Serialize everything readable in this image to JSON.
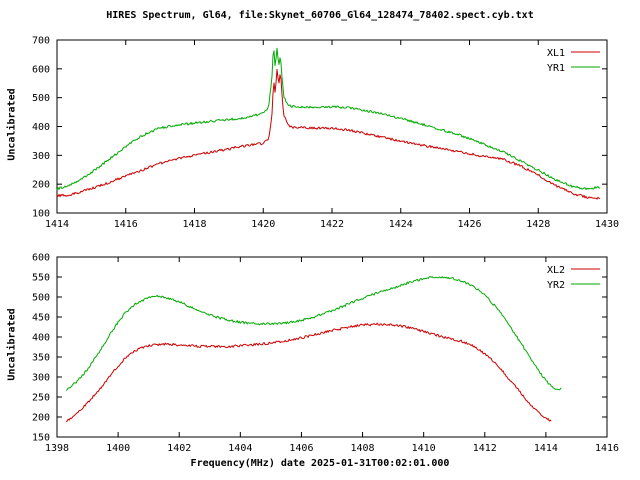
{
  "title": "HIRES Spectrum, Gl64, file:Skynet_60706_Gl64_128474_78402.spect.cyb.txt",
  "colors": {
    "background": "#ffffff",
    "axis": "#000000",
    "red": "#cc0000",
    "green": "#00aa00"
  },
  "chart_data": [
    {
      "type": "line",
      "title": "",
      "xlabel": "",
      "ylabel": "Uncalibrated",
      "xlim": [
        1414,
        1430
      ],
      "ylim": [
        100,
        700
      ],
      "xtick_step": 2,
      "ytick_step": 100,
      "grid": false,
      "legend_position": "top-right",
      "series": [
        {
          "name": "XL1",
          "color": "#cc0000",
          "points": [
            [
              1414.0,
              160
            ],
            [
              1414.3,
              162
            ],
            [
              1414.6,
              170
            ],
            [
              1415.0,
              185
            ],
            [
              1415.5,
              205
            ],
            [
              1416.0,
              228
            ],
            [
              1416.5,
              250
            ],
            [
              1417.0,
              272
            ],
            [
              1417.5,
              288
            ],
            [
              1418.0,
              300
            ],
            [
              1418.5,
              312
            ],
            [
              1419.0,
              322
            ],
            [
              1419.3,
              330
            ],
            [
              1419.6,
              335
            ],
            [
              1420.0,
              342
            ],
            [
              1420.15,
              355
            ],
            [
              1420.25,
              430
            ],
            [
              1420.3,
              560
            ],
            [
              1420.35,
              510
            ],
            [
              1420.4,
              600
            ],
            [
              1420.45,
              545
            ],
            [
              1420.5,
              595
            ],
            [
              1420.55,
              500
            ],
            [
              1420.6,
              440
            ],
            [
              1420.7,
              408
            ],
            [
              1420.8,
              398
            ],
            [
              1421.0,
              396
            ],
            [
              1421.5,
              395
            ],
            [
              1422.0,
              393
            ],
            [
              1422.5,
              388
            ],
            [
              1423.0,
              375
            ],
            [
              1423.5,
              362
            ],
            [
              1424.0,
              350
            ],
            [
              1424.5,
              338
            ],
            [
              1425.0,
              327
            ],
            [
              1425.5,
              317
            ],
            [
              1426.0,
              305
            ],
            [
              1426.5,
              295
            ],
            [
              1427.0,
              285
            ],
            [
              1427.5,
              262
            ],
            [
              1428.0,
              232
            ],
            [
              1428.5,
              195
            ],
            [
              1429.0,
              168
            ],
            [
              1429.4,
              155
            ],
            [
              1429.8,
              150
            ]
          ]
        },
        {
          "name": "YR1",
          "color": "#00aa00",
          "points": [
            [
              1414.0,
              183
            ],
            [
              1414.3,
              192
            ],
            [
              1414.6,
              210
            ],
            [
              1415.0,
              240
            ],
            [
              1415.5,
              285
            ],
            [
              1416.0,
              330
            ],
            [
              1416.5,
              370
            ],
            [
              1417.0,
              395
            ],
            [
              1417.5,
              405
            ],
            [
              1418.0,
              412
            ],
            [
              1418.5,
              418
            ],
            [
              1419.0,
              424
            ],
            [
              1419.5,
              432
            ],
            [
              1420.0,
              445
            ],
            [
              1420.15,
              465
            ],
            [
              1420.25,
              560
            ],
            [
              1420.3,
              685
            ],
            [
              1420.35,
              600
            ],
            [
              1420.4,
              675
            ],
            [
              1420.45,
              610
            ],
            [
              1420.5,
              650
            ],
            [
              1420.55,
              560
            ],
            [
              1420.6,
              505
            ],
            [
              1420.7,
              478
            ],
            [
              1420.8,
              470
            ],
            [
              1421.0,
              468
            ],
            [
              1421.5,
              467
            ],
            [
              1422.0,
              468
            ],
            [
              1422.5,
              465
            ],
            [
              1423.0,
              455
            ],
            [
              1423.5,
              442
            ],
            [
              1424.0,
              428
            ],
            [
              1424.5,
              412
            ],
            [
              1425.0,
              395
            ],
            [
              1425.5,
              378
            ],
            [
              1426.0,
              358
            ],
            [
              1426.5,
              335
            ],
            [
              1427.0,
              310
            ],
            [
              1427.5,
              280
            ],
            [
              1428.0,
              248
            ],
            [
              1428.5,
              215
            ],
            [
              1429.0,
              192
            ],
            [
              1429.4,
              183
            ],
            [
              1429.8,
              190
            ]
          ]
        }
      ]
    },
    {
      "type": "line",
      "title": "",
      "xlabel": "Frequency(MHz) date 2025-01-31T00:02:01.000",
      "ylabel": "Uncalibrated",
      "xlim": [
        1398,
        1416
      ],
      "ylim": [
        150,
        600
      ],
      "xtick_step": 2,
      "ytick_step": 50,
      "grid": false,
      "legend_position": "top-right",
      "series": [
        {
          "name": "XL2",
          "color": "#cc0000",
          "points": [
            [
              1398.3,
              190
            ],
            [
              1398.6,
              205
            ],
            [
              1399.0,
              235
            ],
            [
              1399.4,
              270
            ],
            [
              1399.8,
              310
            ],
            [
              1400.2,
              345
            ],
            [
              1400.6,
              368
            ],
            [
              1401.0,
              378
            ],
            [
              1401.4,
              382
            ],
            [
              1401.8,
              381
            ],
            [
              1402.2,
              379
            ],
            [
              1402.6,
              377
            ],
            [
              1403.0,
              376
            ],
            [
              1403.5,
              376
            ],
            [
              1404.0,
              378
            ],
            [
              1404.5,
              381
            ],
            [
              1405.0,
              385
            ],
            [
              1405.5,
              391
            ],
            [
              1406.0,
              398
            ],
            [
              1406.5,
              407
            ],
            [
              1407.0,
              416
            ],
            [
              1407.5,
              424
            ],
            [
              1408.0,
              430
            ],
            [
              1408.4,
              432
            ],
            [
              1408.8,
              431
            ],
            [
              1409.2,
              428
            ],
            [
              1409.6,
              422
            ],
            [
              1410.0,
              414
            ],
            [
              1410.4,
              405
            ],
            [
              1410.8,
              397
            ],
            [
              1411.2,
              390
            ],
            [
              1411.6,
              378
            ],
            [
              1412.0,
              358
            ],
            [
              1412.4,
              330
            ],
            [
              1412.8,
              295
            ],
            [
              1413.2,
              258
            ],
            [
              1413.6,
              222
            ],
            [
              1414.0,
              196
            ],
            [
              1414.2,
              190
            ]
          ]
        },
        {
          "name": "YR2",
          "color": "#00aa00",
          "points": [
            [
              1398.3,
              268
            ],
            [
              1398.6,
              285
            ],
            [
              1399.0,
              320
            ],
            [
              1399.4,
              365
            ],
            [
              1399.8,
              415
            ],
            [
              1400.2,
              458
            ],
            [
              1400.6,
              485
            ],
            [
              1401.0,
              498
            ],
            [
              1401.3,
              502
            ],
            [
              1401.6,
              498
            ],
            [
              1402.0,
              488
            ],
            [
              1402.4,
              474
            ],
            [
              1402.8,
              461
            ],
            [
              1403.2,
              450
            ],
            [
              1403.6,
              442
            ],
            [
              1404.0,
              437
            ],
            [
              1404.4,
              434
            ],
            [
              1404.8,
              433
            ],
            [
              1405.2,
              434
            ],
            [
              1405.6,
              437
            ],
            [
              1406.0,
              442
            ],
            [
              1406.4,
              450
            ],
            [
              1406.8,
              460
            ],
            [
              1407.2,
              472
            ],
            [
              1407.6,
              485
            ],
            [
              1408.0,
              497
            ],
            [
              1408.4,
              508
            ],
            [
              1408.8,
              518
            ],
            [
              1409.2,
              528
            ],
            [
              1409.6,
              538
            ],
            [
              1410.0,
              546
            ],
            [
              1410.4,
              551
            ],
            [
              1410.8,
              549
            ],
            [
              1411.2,
              542
            ],
            [
              1411.6,
              528
            ],
            [
              1412.0,
              505
            ],
            [
              1412.4,
              472
            ],
            [
              1412.8,
              430
            ],
            [
              1413.2,
              382
            ],
            [
              1413.6,
              335
            ],
            [
              1414.0,
              290
            ],
            [
              1414.3,
              268
            ],
            [
              1414.5,
              272
            ]
          ]
        }
      ]
    }
  ]
}
